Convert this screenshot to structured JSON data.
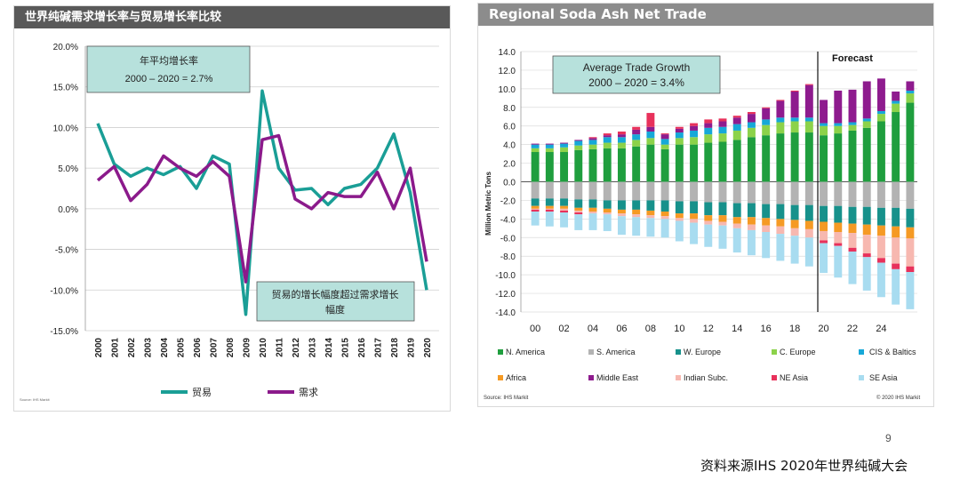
{
  "left_chart": {
    "title": "世界纯碱需求增长率与贸易增长率比较",
    "avg_box": {
      "line1": "年平均增长率",
      "line2": "2000 – 2020 = 2.7%"
    },
    "note_box": {
      "line1": "贸易的增长幅度超过需求增长",
      "line2": "幅度"
    },
    "source": "Source: IHS Markit"
  },
  "right_chart": {
    "title": "Regional Soda Ash Net Trade",
    "avg_box": {
      "line1": "Average Trade Growth",
      "line2": "2000 – 2020 = 3.4%"
    },
    "forecast_label": "Forecast",
    "source": "Source: IHS Markit",
    "copyright": "© 2020 IHS Markit"
  },
  "page_number": "9",
  "footer_source": "资料来源IHS  2020年世界纯碱大会",
  "colors": {
    "trade": "#1a9e96",
    "demand": "#8b1a8b",
    "note_box": "#b7e1dc",
    "N. America": "#1f9e3e",
    "S. America": "#b3b3b3",
    "W. Europe": "#17918b",
    "C. Europe": "#8cd24a",
    "CIS & Baltics": "#16a8d8",
    "Africa": "#f59a24",
    "Middle East": "#8e1b8e",
    "Indian Subc.": "#f7b8b0",
    "NE Asia": "#e8315b",
    "SE Asia": "#a8dcf0"
  },
  "chart_data": [
    {
      "type": "line",
      "title": "世界纯碱需求增长率与贸易增长率比较",
      "x": [
        "2000",
        "2001",
        "2002",
        "2003",
        "2004",
        "2005",
        "2006",
        "2007",
        "2008",
        "2009",
        "2010",
        "2011",
        "2012",
        "2013",
        "2014",
        "2015",
        "2016",
        "2017",
        "2018",
        "2019",
        "2020"
      ],
      "ylim": [
        -15,
        20
      ],
      "yticks": [
        "20.0%",
        "15.0%",
        "10.0%",
        "5.0%",
        "0.0%",
        "-5.0%",
        "-10.0%",
        "-15.0%"
      ],
      "series": [
        {
          "name": "贸易",
          "values": [
            10.5,
            5.5,
            4.0,
            5.0,
            4.2,
            5.2,
            2.5,
            6.5,
            5.5,
            -13.0,
            14.5,
            5.0,
            2.3,
            2.5,
            0.5,
            2.5,
            3.0,
            5.0,
            9.2,
            2.0,
            -10.0
          ]
        },
        {
          "name": "需求",
          "values": [
            3.5,
            5.2,
            1.0,
            3.0,
            6.5,
            5.0,
            4.0,
            5.8,
            4.0,
            -9.0,
            8.5,
            9.0,
            1.2,
            0.0,
            2.0,
            1.5,
            1.5,
            4.5,
            0.0,
            5.0,
            -6.5
          ]
        }
      ]
    },
    {
      "type": "bar",
      "stacked": true,
      "title": "Regional Soda Ash Net Trade",
      "ylabel": "Million Metric Tons",
      "ylim": [
        -14,
        14
      ],
      "yticks": [
        "14.0",
        "12.0",
        "10.0",
        "8.0",
        "6.0",
        "4.0",
        "2.0",
        "0.0",
        "-2.0",
        "-4.0",
        "-6.0",
        "-8.0",
        "-10.0",
        "-12.0",
        "-14.0"
      ],
      "xtick_labels": [
        "00",
        "02",
        "04",
        "06",
        "08",
        "10",
        "12",
        "14",
        "16",
        "18",
        "20",
        "22",
        "24"
      ],
      "forecast_start_year": 2020,
      "categories": [
        "2000",
        "2001",
        "2002",
        "2003",
        "2004",
        "2005",
        "2006",
        "2007",
        "2008",
        "2009",
        "2010",
        "2011",
        "2012",
        "2013",
        "2014",
        "2015",
        "2016",
        "2017",
        "2018",
        "2019",
        "2020",
        "2021",
        "2022",
        "2023",
        "2024",
        "2025",
        "2026"
      ],
      "legend": [
        "N. America",
        "S. America",
        "W. Europe",
        "C. Europe",
        "CIS & Baltics",
        "Africa",
        "Middle East",
        "Indian Subc.",
        "NE Asia",
        "SE Asia"
      ],
      "series": [
        {
          "name": "N. America",
          "values": [
            3.2,
            3.2,
            3.2,
            3.4,
            3.5,
            3.6,
            3.6,
            3.8,
            4.0,
            3.5,
            4.0,
            4.0,
            4.2,
            4.3,
            4.5,
            4.8,
            5.0,
            5.2,
            5.3,
            5.3,
            5.0,
            5.2,
            5.5,
            5.8,
            6.5,
            7.5,
            8.5
          ]
        },
        {
          "name": "S. America",
          "values": [
            -1.8,
            -1.8,
            -1.8,
            -1.9,
            -1.9,
            -2.0,
            -2.0,
            -2.0,
            -2.0,
            -2.0,
            -2.1,
            -2.1,
            -2.2,
            -2.2,
            -2.3,
            -2.3,
            -2.4,
            -2.4,
            -2.5,
            -2.5,
            -2.6,
            -2.6,
            -2.7,
            -2.7,
            -2.8,
            -2.8,
            -2.9
          ]
        },
        {
          "name": "W. Europe",
          "values": [
            -0.8,
            -0.8,
            -0.8,
            -0.9,
            -0.9,
            -0.9,
            -1.0,
            -1.0,
            -1.1,
            -1.2,
            -1.3,
            -1.3,
            -1.4,
            -1.4,
            -1.5,
            -1.5,
            -1.5,
            -1.6,
            -1.6,
            -1.7,
            -1.7,
            -1.8,
            -1.8,
            -1.9,
            -1.9,
            -2.0,
            -2.0
          ]
        },
        {
          "name": "C. Europe",
          "values": [
            0.4,
            0.4,
            0.5,
            0.5,
            0.5,
            0.6,
            0.6,
            0.7,
            0.7,
            0.5,
            0.7,
            0.8,
            0.9,
            0.9,
            1.0,
            1.0,
            1.1,
            1.2,
            1.2,
            1.2,
            1.0,
            0.8,
            0.6,
            0.7,
            0.8,
            0.9,
            1.0
          ]
        },
        {
          "name": "CIS & Baltics",
          "values": [
            0.4,
            0.4,
            0.4,
            0.5,
            0.5,
            0.6,
            0.6,
            0.6,
            0.7,
            0.6,
            0.6,
            0.7,
            0.7,
            0.7,
            0.7,
            0.6,
            0.6,
            0.5,
            0.4,
            0.4,
            0.3,
            0.3,
            0.3,
            0.3,
            0.3,
            0.3,
            0.3
          ]
        },
        {
          "name": "Africa",
          "values": [
            -0.3,
            -0.3,
            -0.3,
            -0.3,
            -0.4,
            -0.4,
            -0.4,
            -0.5,
            -0.5,
            -0.5,
            -0.5,
            -0.6,
            -0.6,
            -0.7,
            -0.7,
            -0.8,
            -0.8,
            -0.8,
            -0.9,
            -0.9,
            -1.0,
            -1.0,
            -1.0,
            -1.1,
            -1.1,
            -1.2,
            -1.2
          ]
        },
        {
          "name": "Middle East",
          "values": [
            0.1,
            0.1,
            0.1,
            0.1,
            0.2,
            0.2,
            0.3,
            0.5,
            0.5,
            0.5,
            0.4,
            0.5,
            0.5,
            0.6,
            0.7,
            0.9,
            1.2,
            1.8,
            2.8,
            3.5,
            2.5,
            3.5,
            3.5,
            4.0,
            3.5,
            1.0,
            1.0
          ]
        },
        {
          "name": "Indian Subc.",
          "values": [
            -0.1,
            -0.1,
            -0.2,
            -0.2,
            -0.2,
            -0.2,
            -0.3,
            -0.3,
            -0.3,
            -0.3,
            -0.3,
            -0.4,
            -0.4,
            -0.4,
            -0.5,
            -0.6,
            -0.7,
            -0.8,
            -0.8,
            -0.9,
            -1.0,
            -1.2,
            -1.6,
            -2.0,
            -2.4,
            -2.8,
            -3.0
          ]
        },
        {
          "name": "NE Asia",
          "values": [
            -0.2,
            -0.2,
            -0.2,
            -0.2,
            0.1,
            0.2,
            0.3,
            0.3,
            1.5,
            0.1,
            0.2,
            0.3,
            0.4,
            0.3,
            0.2,
            0.2,
            0.1,
            0.1,
            0.1,
            0.1,
            -0.3,
            -0.3,
            -0.4,
            -0.4,
            -0.5,
            -0.6,
            -0.6
          ]
        },
        {
          "name": "SE Asia",
          "values": [
            -1.5,
            -1.6,
            -1.6,
            -1.7,
            -1.8,
            -1.8,
            -2.0,
            -2.0,
            -2.0,
            -2.0,
            -2.2,
            -2.3,
            -2.4,
            -2.5,
            -2.6,
            -2.7,
            -2.8,
            -2.9,
            -3.0,
            -3.1,
            -3.2,
            -3.4,
            -3.5,
            -3.6,
            -3.7,
            -3.8,
            -4.0
          ]
        }
      ]
    }
  ]
}
